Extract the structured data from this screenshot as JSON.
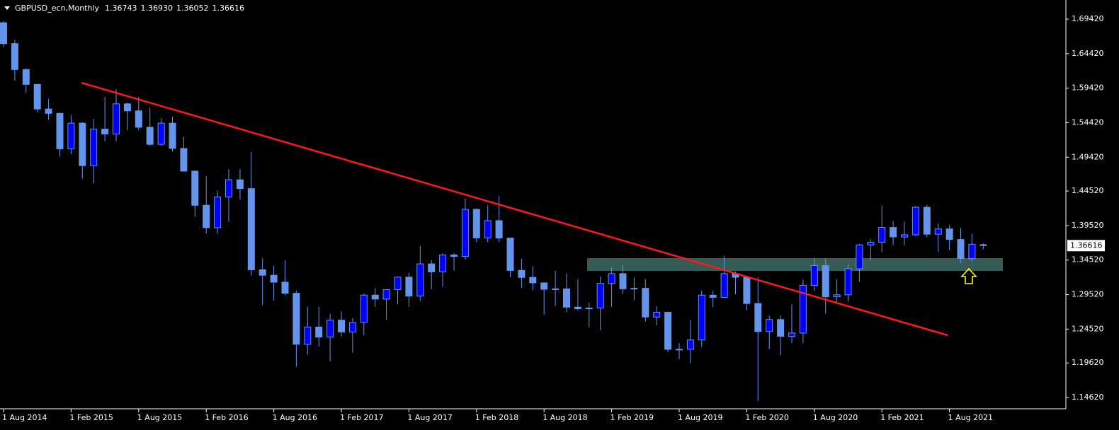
{
  "chart_data": {
    "type": "candlestick",
    "title": "GBPUSD_ecn,Monthly",
    "ohlc_labels": [
      "1.36743",
      "1.36930",
      "1.36052",
      "1.36616"
    ],
    "categories": [
      "1 Aug 2014",
      null,
      null,
      null,
      null,
      null,
      "1 Feb 2015",
      null,
      null,
      null,
      null,
      null,
      "1 Aug 2015",
      null,
      null,
      null,
      null,
      null,
      "1 Feb 2016",
      null,
      null,
      null,
      null,
      null,
      "1 Aug 2016",
      null,
      null,
      null,
      null,
      null,
      "1 Feb 2017",
      null,
      null,
      null,
      null,
      null,
      "1 Aug 2017",
      null,
      null,
      null,
      null,
      null,
      "1 Feb 2018",
      null,
      null,
      null,
      null,
      null,
      "1 Aug 2018",
      null,
      null,
      null,
      null,
      null,
      "1 Feb 2019",
      null,
      null,
      null,
      null,
      null,
      "1 Aug 2019",
      null,
      null,
      null,
      null,
      null,
      "1 Feb 2020",
      null,
      null,
      null,
      null,
      null,
      "1 Aug 2020",
      null,
      null,
      null,
      null,
      null,
      "1 Feb 2021",
      null,
      null,
      null,
      null,
      null,
      "1 Aug 2021",
      null,
      null,
      null
    ],
    "open": [
      1.689,
      1.6587,
      1.6211,
      1.5997,
      1.564,
      1.5577,
      1.5064,
      1.5435,
      1.482,
      1.5349,
      1.5278,
      1.5715,
      1.5613,
      1.5376,
      1.5128,
      1.5435,
      1.5069,
      1.474,
      1.4245,
      1.392,
      1.4365,
      1.4615,
      1.4487,
      1.3311,
      1.3232,
      1.3132,
      1.2971,
      1.2232,
      1.2482,
      1.2337,
      1.2582,
      1.241,
      1.2548,
      1.2945,
      1.2887,
      1.3025,
      1.3205,
      1.293,
      1.3397,
      1.3282,
      1.3526,
      1.3505,
      1.4187,
      1.3773,
      1.4023,
      1.3771,
      1.3302,
      1.3201,
      1.3122,
      1.3029,
      1.3035,
      1.277,
      1.2747,
      1.2757,
      1.3114,
      1.3256,
      1.3036,
      1.3043,
      1.2627,
      1.2696,
      1.216,
      1.216,
      1.2295,
      1.2944,
      1.2912,
      1.3256,
      1.3203,
      1.2823,
      1.2417,
      1.2591,
      1.2348,
      1.2395,
      1.3086,
      1.3372,
      1.292,
      1.2949,
      1.3325,
      1.3672,
      1.3711,
      1.3925,
      1.3787,
      1.3818,
      1.4217,
      1.3827,
      1.3903,
      1.375,
      1.3474,
      1.36743
    ],
    "high": [
      1.691,
      1.6644,
      1.6227,
      1.6,
      1.5786,
      1.5588,
      1.5552,
      1.5453,
      1.5497,
      1.5816,
      1.593,
      1.5736,
      1.5818,
      1.5659,
      1.5508,
      1.5529,
      1.524,
      1.475,
      1.4668,
      1.4459,
      1.477,
      1.477,
      1.5018,
      1.3479,
      1.3372,
      1.3445,
      1.301,
      1.2775,
      1.2775,
      1.2673,
      1.2706,
      1.2615,
      1.2965,
      1.3047,
      1.303,
      1.3213,
      1.3269,
      1.3657,
      1.345,
      1.3549,
      1.3553,
      1.4345,
      1.42,
      1.4245,
      1.4377,
      1.3772,
      1.3472,
      1.3363,
      1.3124,
      1.3298,
      1.3257,
      1.3175,
      1.2839,
      1.3214,
      1.3349,
      1.3382,
      1.3197,
      1.3177,
      1.2784,
      1.2706,
      1.225,
      1.2582,
      1.3013,
      1.301,
      1.3515,
      1.3285,
      1.321,
      1.3201,
      1.2648,
      1.2648,
      1.2813,
      1.317,
      1.3482,
      1.3482,
      1.3177,
      1.3397,
      1.3686,
      1.3759,
      1.4241,
      1.4016,
      1.4009,
      1.4234,
      1.425,
      1.3984,
      1.3959,
      1.3913,
      1.3834,
      1.3693
    ],
    "low": [
      1.6535,
      1.6052,
      1.5875,
      1.5591,
      1.5486,
      1.4952,
      1.4987,
      1.4632,
      1.4565,
      1.5171,
      1.517,
      1.533,
      1.5331,
      1.5107,
      1.5107,
      1.5026,
      1.4732,
      1.408,
      1.3836,
      1.3834,
      1.4006,
      1.4331,
      1.3229,
      1.2798,
      1.2865,
      1.2943,
      1.1905,
      1.2082,
      1.2199,
      1.1986,
      1.2344,
      1.2109,
      1.2365,
      1.2774,
      1.2589,
      1.2811,
      1.2773,
      1.2863,
      1.3027,
      1.3062,
      1.33,
      1.3459,
      1.3712,
      1.3711,
      1.3711,
      1.3204,
      1.305,
      1.3012,
      1.2661,
      1.2788,
      1.2696,
      1.2723,
      1.2478,
      1.2435,
      1.2773,
      1.296,
      1.2866,
      1.2559,
      1.2505,
      1.2119,
      1.2015,
      1.1958,
      1.2193,
      1.2769,
      1.2905,
      1.2954,
      1.2725,
      1.1409,
      1.2163,
      1.2076,
      1.2252,
      1.2251,
      1.3005,
      1.2676,
      1.2823,
      1.2854,
      1.3135,
      1.3451,
      1.3566,
      1.3671,
      1.3668,
      1.38,
      1.3786,
      1.3571,
      1.3602,
      1.3411,
      1.3434,
      1.36052
    ],
    "close": [
      1.6587,
      1.6211,
      1.5997,
      1.564,
      1.5577,
      1.5064,
      1.5435,
      1.482,
      1.5349,
      1.5278,
      1.5715,
      1.5613,
      1.5376,
      1.5128,
      1.5435,
      1.5069,
      1.474,
      1.4245,
      1.392,
      1.4365,
      1.4615,
      1.4487,
      1.3311,
      1.3232,
      1.3132,
      1.2971,
      1.2232,
      1.2482,
      1.2337,
      1.2582,
      1.241,
      1.2548,
      1.2945,
      1.2887,
      1.3025,
      1.3205,
      1.293,
      1.3397,
      1.3282,
      1.3526,
      1.3505,
      1.4187,
      1.3773,
      1.4023,
      1.3771,
      1.3302,
      1.3201,
      1.3122,
      1.3029,
      1.3035,
      1.277,
      1.2747,
      1.2757,
      1.3114,
      1.3256,
      1.3036,
      1.3043,
      1.2627,
      1.2696,
      1.216,
      1.216,
      1.2295,
      1.2944,
      1.2912,
      1.3256,
      1.3203,
      1.2823,
      1.2417,
      1.2591,
      1.2348,
      1.2395,
      1.3086,
      1.3372,
      1.292,
      1.2949,
      1.3325,
      1.3672,
      1.3711,
      1.3925,
      1.3787,
      1.3818,
      1.4217,
      1.3827,
      1.3903,
      1.375,
      1.3474,
      1.3681,
      1.36616
    ],
    "up_color": "#0000ff",
    "down_color": "#6495ed",
    "wick_color": "#6495ed",
    "ylim": [
      1.1298,
      1.7219
    ],
    "yticks": [
      {
        "value": 1.6942,
        "label": "1.69420"
      },
      {
        "value": 1.6442,
        "label": "1.64420"
      },
      {
        "value": 1.5942,
        "label": "1.59420"
      },
      {
        "value": 1.5442,
        "label": "1.54420"
      },
      {
        "value": 1.4942,
        "label": "1.49420"
      },
      {
        "value": 1.4452,
        "label": "1.44520"
      },
      {
        "value": 1.3952,
        "label": "1.39520"
      },
      {
        "value": 1.3452,
        "label": "1.34520"
      },
      {
        "value": 1.2952,
        "label": "1.29520"
      },
      {
        "value": 1.2452,
        "label": "1.24520"
      },
      {
        "value": 1.1962,
        "label": "1.19620"
      },
      {
        "value": 1.1462,
        "label": "1.14620"
      }
    ]
  }
}
